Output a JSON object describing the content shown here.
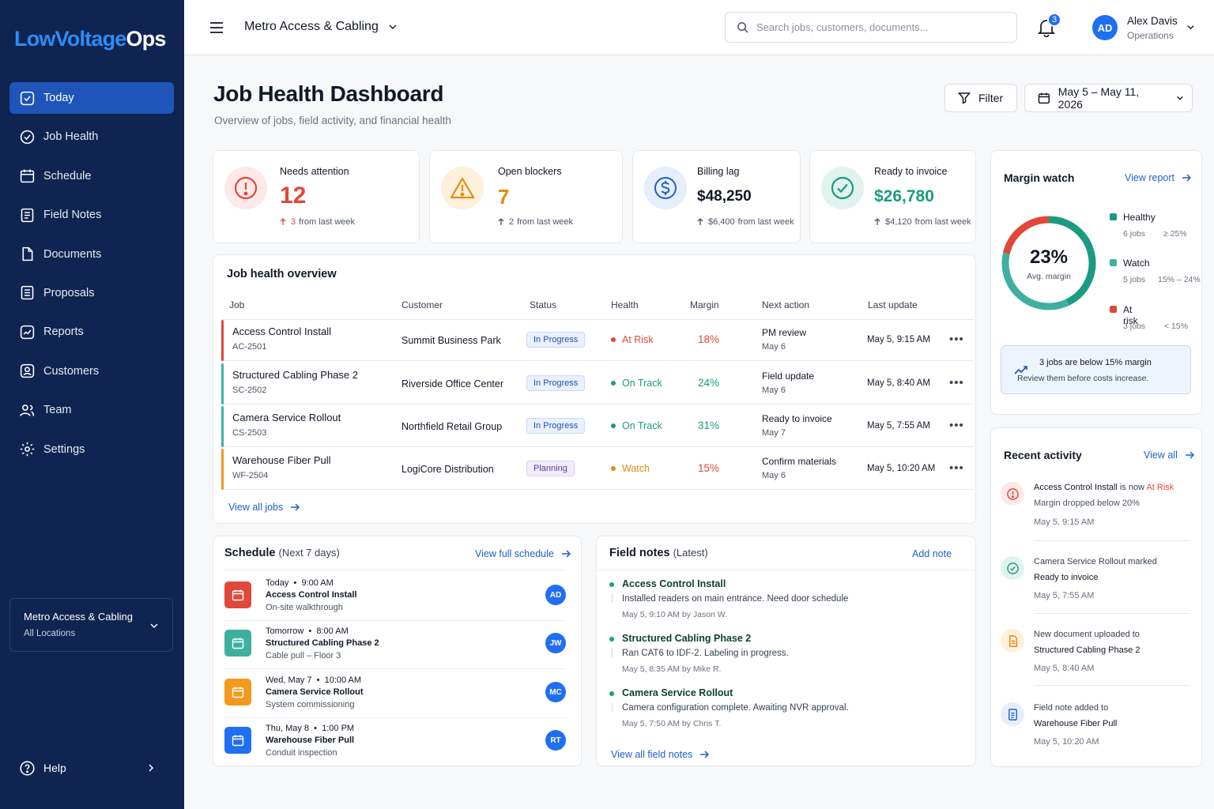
{
  "sidebar": {
    "logo_a": "LowVoltage",
    "logo_b": "Ops",
    "items": [
      {
        "label": "Today",
        "icon": "today-icon"
      },
      {
        "label": "Job Health",
        "icon": "check-circle-icon"
      },
      {
        "label": "Schedule",
        "icon": "calendar-icon"
      },
      {
        "label": "Field Notes",
        "icon": "notes-icon"
      },
      {
        "label": "Documents",
        "icon": "document-icon"
      },
      {
        "label": "Proposals",
        "icon": "proposal-icon"
      },
      {
        "label": "Reports",
        "icon": "reports-icon"
      },
      {
        "label": "Customers",
        "icon": "customers-icon"
      },
      {
        "label": "Team",
        "icon": "team-icon"
      },
      {
        "label": "Settings",
        "icon": "gear-icon"
      }
    ],
    "location": {
      "name": "Metro Access & Cabling",
      "scope": "All Locations"
    },
    "help": "Help"
  },
  "topbar": {
    "org": "Metro Access & Cabling",
    "search_placeholder": "Search jobs, customers, documents...",
    "notifications": "3",
    "user": {
      "initials": "AD",
      "name": "Alex Davis",
      "role": "Operations"
    }
  },
  "header": {
    "title": "Job Health Dashboard",
    "subtitle": "Overview of jobs, field activity, and financial health",
    "filter_label": "Filter",
    "date_range": "May 5 – May 11, 2026"
  },
  "kpis": [
    {
      "label": "Needs attention",
      "value": "12",
      "change": "3",
      "change_text": "from last week",
      "color": "#e0483b"
    },
    {
      "label": "Open blockers",
      "value": "7",
      "change": "2",
      "change_text": "from last week",
      "color": "#e58a12"
    },
    {
      "label": "Billing lag",
      "value": "$48,250",
      "change": "$6,400",
      "change_text": "from last week",
      "color": "#111827"
    },
    {
      "label": "Ready to invoice",
      "value": "$26,780",
      "change": "$4,120",
      "change_text": "from last week",
      "color": "#1a9b80"
    }
  ],
  "overview": {
    "title": "Job health overview",
    "columns": [
      "Job",
      "Customer",
      "Status",
      "Health",
      "Margin",
      "Next action",
      "Last update"
    ],
    "rows": [
      {
        "job": "Access Control Install",
        "code": "AC-2501",
        "customer": "Summit Business Park",
        "status": "In Progress",
        "health": "At Risk",
        "margin": "18%",
        "next": "PM review",
        "next_date": "May 6",
        "updated": "May 5, 9:15 AM",
        "color": "#e0483b"
      },
      {
        "job": "Structured Cabling Phase 2",
        "code": "SC-2502",
        "customer": "Riverside Office Center",
        "status": "In Progress",
        "health": "On Track",
        "margin": "24%",
        "next": "Field update",
        "next_date": "May 6",
        "updated": "May 5, 8:40 AM",
        "color": "#1a9b80"
      },
      {
        "job": "Camera Service Rollout",
        "code": "CS-2503",
        "customer": "Northfield Retail Group",
        "status": "In Progress",
        "health": "On Track",
        "margin": "31%",
        "next": "Ready to invoice",
        "next_date": "May 7",
        "updated": "May 5, 7:55 AM",
        "color": "#1a9b80"
      },
      {
        "job": "Warehouse Fiber Pull",
        "code": "WF-2504",
        "customer": "LogiCore Distribution",
        "status": "Planning",
        "health": "Watch",
        "margin": "15%",
        "next": "Confirm materials",
        "next_date": "May 6",
        "updated": "May 5, 10:20 AM",
        "color": "#e58a12"
      }
    ],
    "view_all": "View all jobs"
  },
  "schedule": {
    "title": "Schedule",
    "subtitle": "(Next 7 days)",
    "link": "View full schedule",
    "items": [
      {
        "day": "Today",
        "time": "9:00 AM",
        "job": "Access Control Install",
        "desc": "On-site walkthrough",
        "initials": "AD",
        "color": "#e0483b"
      },
      {
        "day": "Tomorrow",
        "time": "8:00 AM",
        "job": "Structured Cabling Phase 2",
        "desc": "Cable pull – Floor 3",
        "initials": "JW",
        "color": "#3fb0a0"
      },
      {
        "day": "Wed, May 7",
        "time": "10:00 AM",
        "job": "Camera Service Rollout",
        "desc": "System commissioning",
        "initials": "MC",
        "color": "#f39a1e"
      },
      {
        "day": "Thu, May 8",
        "time": "1:00 PM",
        "job": "Warehouse Fiber Pull",
        "desc": "Conduit inspection",
        "initials": "RT",
        "color": "#1f6ff0"
      }
    ]
  },
  "field_notes": {
    "title": "Field notes",
    "subtitle": "(Latest)",
    "add": "Add note",
    "items": [
      {
        "job": "Access Control Install",
        "text": "Installed readers on main entrance. Need door schedule",
        "meta": "May 5, 9:10 AM by Jason W."
      },
      {
        "job": "Structured Cabling Phase 2",
        "text": "Ran CAT6 to IDF-2. Labeling in progress.",
        "meta": "May 5, 8:35 AM by Mike R."
      },
      {
        "job": "Camera Service Rollout",
        "text": "Camera configuration complete. Awaiting NVR approval.",
        "meta": "May 5, 7:50 AM by Chris T."
      }
    ],
    "view_all": "View all field notes"
  },
  "margin_watch": {
    "title": "Margin watch",
    "link": "View report",
    "avg_value": "23%",
    "avg_label": "Avg. margin",
    "legend": [
      {
        "name": "Healthy",
        "jobs": "6 jobs",
        "range": "≥ 25%",
        "color": "#1a9b80",
        "count": 6
      },
      {
        "name": "Watch",
        "jobs": "5 jobs",
        "range": "15% – 24%",
        "color": "#3fb0a0",
        "count": 5
      },
      {
        "name": "At risk",
        "jobs": "3 jobs",
        "range": "< 15%",
        "color": "#e0483b",
        "count": 3
      }
    ],
    "alert_title": "3 jobs are below 15% margin",
    "alert_text": "Review them before costs increase."
  },
  "activity": {
    "title": "Recent activity",
    "link": "View all",
    "items": [
      {
        "l1a": "Access Control Install",
        "l1b": " is now ",
        "l1c": "At Risk",
        "l2": "Margin dropped below 20%",
        "time": "May 5, 9:15 AM"
      },
      {
        "l1": "Camera Service Rollout marked",
        "l2": "Ready to invoice",
        "time": "May 5, 7:55 AM"
      },
      {
        "l1": "New document uploaded to",
        "l2": "Structured Cabling Phase 2",
        "time": "May 5, 8:40 AM"
      },
      {
        "l1": "Field note added to",
        "l2": "Warehouse Fiber Pull",
        "time": "May 5, 10:20 AM"
      }
    ]
  }
}
